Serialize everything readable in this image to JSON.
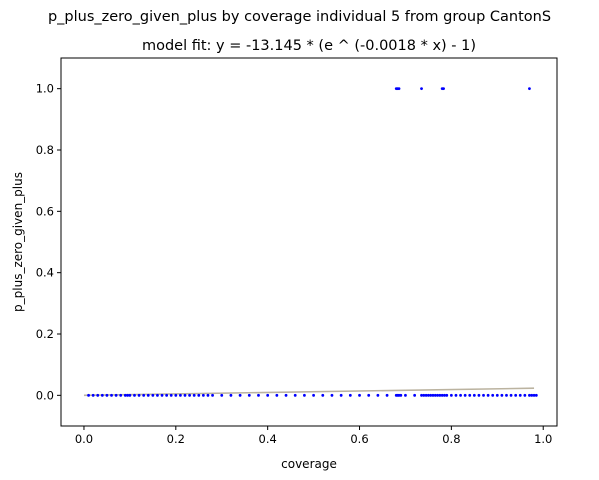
{
  "chart_data": {
    "type": "scatter",
    "title": "p_plus_zero_given_plus by coverage individual 5 from group CantonS",
    "subtitle": "model fit: y = -13.145 * (e ^ (-0.0018 * x) - 1)",
    "xlabel": "coverage",
    "ylabel": "p_plus_zero_given_plus",
    "xlim": [
      -0.05,
      1.03
    ],
    "ylim": [
      -0.1,
      1.1
    ],
    "xticks": [
      "0.0",
      "0.2",
      "0.4",
      "0.6",
      "0.8",
      "1.0"
    ],
    "xtick_values": [
      0.0,
      0.2,
      0.4,
      0.6,
      0.8,
      1.0
    ],
    "yticks": [
      "0.0",
      "0.2",
      "0.4",
      "0.6",
      "0.8",
      "1.0"
    ],
    "ytick_values": [
      0.0,
      0.2,
      0.4,
      0.6,
      0.8,
      1.0
    ],
    "grid": false,
    "colors": {
      "points": "#0000ff",
      "fit": "#bbb3a0"
    },
    "series": [
      {
        "kind": "points",
        "x": [
          0.01,
          0.02,
          0.03,
          0.04,
          0.05,
          0.06,
          0.07,
          0.08,
          0.09,
          0.095,
          0.1,
          0.11,
          0.12,
          0.13,
          0.14,
          0.15,
          0.16,
          0.17,
          0.18,
          0.19,
          0.2,
          0.21,
          0.22,
          0.23,
          0.24,
          0.25,
          0.26,
          0.27,
          0.28,
          0.3,
          0.32,
          0.34,
          0.36,
          0.38,
          0.4,
          0.42,
          0.44,
          0.46,
          0.48,
          0.5,
          0.52,
          0.54,
          0.56,
          0.58,
          0.6,
          0.62,
          0.64,
          0.66,
          0.68,
          0.683,
          0.686,
          0.69,
          0.7,
          0.72,
          0.735,
          0.74,
          0.745,
          0.75,
          0.755,
          0.76,
          0.765,
          0.77,
          0.775,
          0.78,
          0.785,
          0.79,
          0.8,
          0.81,
          0.82,
          0.83,
          0.84,
          0.85,
          0.86,
          0.87,
          0.88,
          0.89,
          0.9,
          0.91,
          0.92,
          0.93,
          0.94,
          0.95,
          0.96,
          0.97,
          0.975,
          0.98,
          0.985,
          0.68,
          0.683,
          0.686,
          0.735,
          0.78,
          0.783,
          0.97
        ],
        "y": [
          0,
          0,
          0,
          0,
          0,
          0,
          0,
          0,
          0,
          0,
          0,
          0,
          0,
          0,
          0,
          0,
          0,
          0,
          0,
          0,
          0,
          0,
          0,
          0,
          0,
          0,
          0,
          0,
          0,
          0,
          0,
          0,
          0,
          0,
          0,
          0,
          0,
          0,
          0,
          0,
          0,
          0,
          0,
          0,
          0,
          0,
          0,
          0,
          0,
          0,
          0,
          0,
          0,
          0,
          0,
          0,
          0,
          0,
          0,
          0,
          0,
          0,
          0,
          0,
          0,
          0,
          0,
          0,
          0,
          0,
          0,
          0,
          0,
          0,
          0,
          0,
          0,
          0,
          0,
          0,
          0,
          0,
          0,
          0,
          0,
          0,
          0,
          1,
          1,
          1,
          1,
          1,
          1,
          1
        ]
      },
      {
        "kind": "line",
        "x": [
          0.0,
          0.98
        ],
        "y": [
          0.0,
          0.0232
        ]
      }
    ]
  }
}
